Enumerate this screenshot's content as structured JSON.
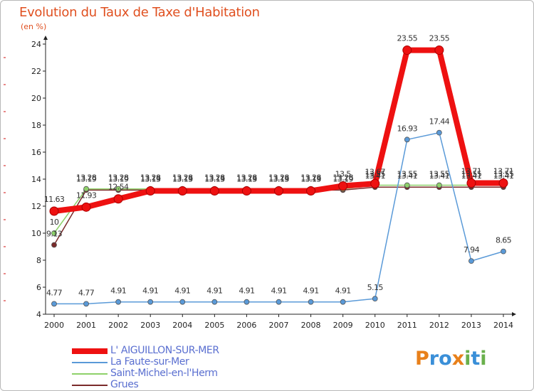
{
  "title": "Evolution du Taux de Taxe d'Habitation",
  "unit": "(en %)",
  "logo": {
    "text": "Proxiti",
    "letters": [
      "P",
      "r",
      "o",
      "x",
      "i",
      "t",
      "i"
    ],
    "colors": [
      "#e8801a",
      "#3a8fd8",
      "#3a8fd8",
      "#e8801a",
      "#6ab04c",
      "#3a8fd8",
      "#6ab04c"
    ]
  },
  "chart_data": {
    "type": "line",
    "x": [
      "2000",
      "2001",
      "2002",
      "2003",
      "2004",
      "2005",
      "2006",
      "2007",
      "2008",
      "2009",
      "2010",
      "2011",
      "2012",
      "2013",
      "2014"
    ],
    "ylim": [
      4,
      24
    ],
    "yticks": [
      4,
      6,
      8,
      10,
      12,
      14,
      16,
      18,
      20,
      22,
      24
    ],
    "grid": false,
    "legend_position": "bottom-left",
    "series": [
      {
        "name": "Grues",
        "color": "#7a2a2a",
        "width": 1.5,
        "values": [
          9.13,
          13.19,
          13.19,
          13.19,
          13.19,
          13.19,
          13.19,
          13.19,
          13.19,
          13.19,
          13.41,
          13.41,
          13.41,
          13.41,
          13.41
        ],
        "labels": [
          "9.13",
          "13.19",
          "13.19",
          "13.19",
          "13.19",
          "13.19",
          "13.19",
          "13.19",
          "13.19",
          "13.19",
          "13.41",
          "13.41",
          "13.41",
          "13.41",
          "13.41"
        ]
      },
      {
        "name": "Saint-Michel-en-l'Herm",
        "color": "#8ed16a",
        "width": 1.5,
        "values": [
          10,
          13.28,
          13.28,
          13.28,
          13.28,
          13.28,
          13.28,
          13.28,
          13.28,
          13.28,
          13.55,
          13.55,
          13.55,
          13.55,
          13.55
        ],
        "labels": [
          "10",
          "13.28",
          "13.28",
          "13.28",
          "13.28",
          "13.28",
          "13.28",
          "13.28",
          "13.28",
          "13.28",
          "13.55",
          "13.55",
          "13.55",
          "13.55",
          "13.55"
        ]
      },
      {
        "name": "La Faute-sur-Mer",
        "color": "#5a9ad8",
        "width": 1.5,
        "values": [
          4.77,
          4.77,
          4.91,
          4.91,
          4.91,
          4.91,
          4.91,
          4.91,
          4.91,
          4.91,
          5.15,
          16.93,
          17.44,
          7.94,
          8.65
        ],
        "labels": [
          "4.77",
          "4.77",
          "4.91",
          "4.91",
          "4.91",
          "4.91",
          "4.91",
          "4.91",
          "4.91",
          "4.91",
          "5.15",
          "16.93",
          "17.44",
          "7.94",
          "8.65"
        ]
      },
      {
        "name": "L' AIGUILLON-SUR-MER",
        "color": "#ee1111",
        "width": 8,
        "values": [
          11.63,
          11.93,
          12.54,
          13.13,
          13.13,
          13.13,
          13.13,
          13.13,
          13.13,
          13.5,
          13.67,
          23.55,
          23.55,
          13.71,
          13.71
        ],
        "labels": [
          "11.63",
          "11.93",
          "12.54",
          "13.13",
          "13.13",
          "13.13",
          "13.13",
          "13.13",
          "13.13",
          "13.5",
          "13.67",
          "23.55",
          "23.55",
          "13.71",
          "13.71"
        ]
      }
    ]
  }
}
